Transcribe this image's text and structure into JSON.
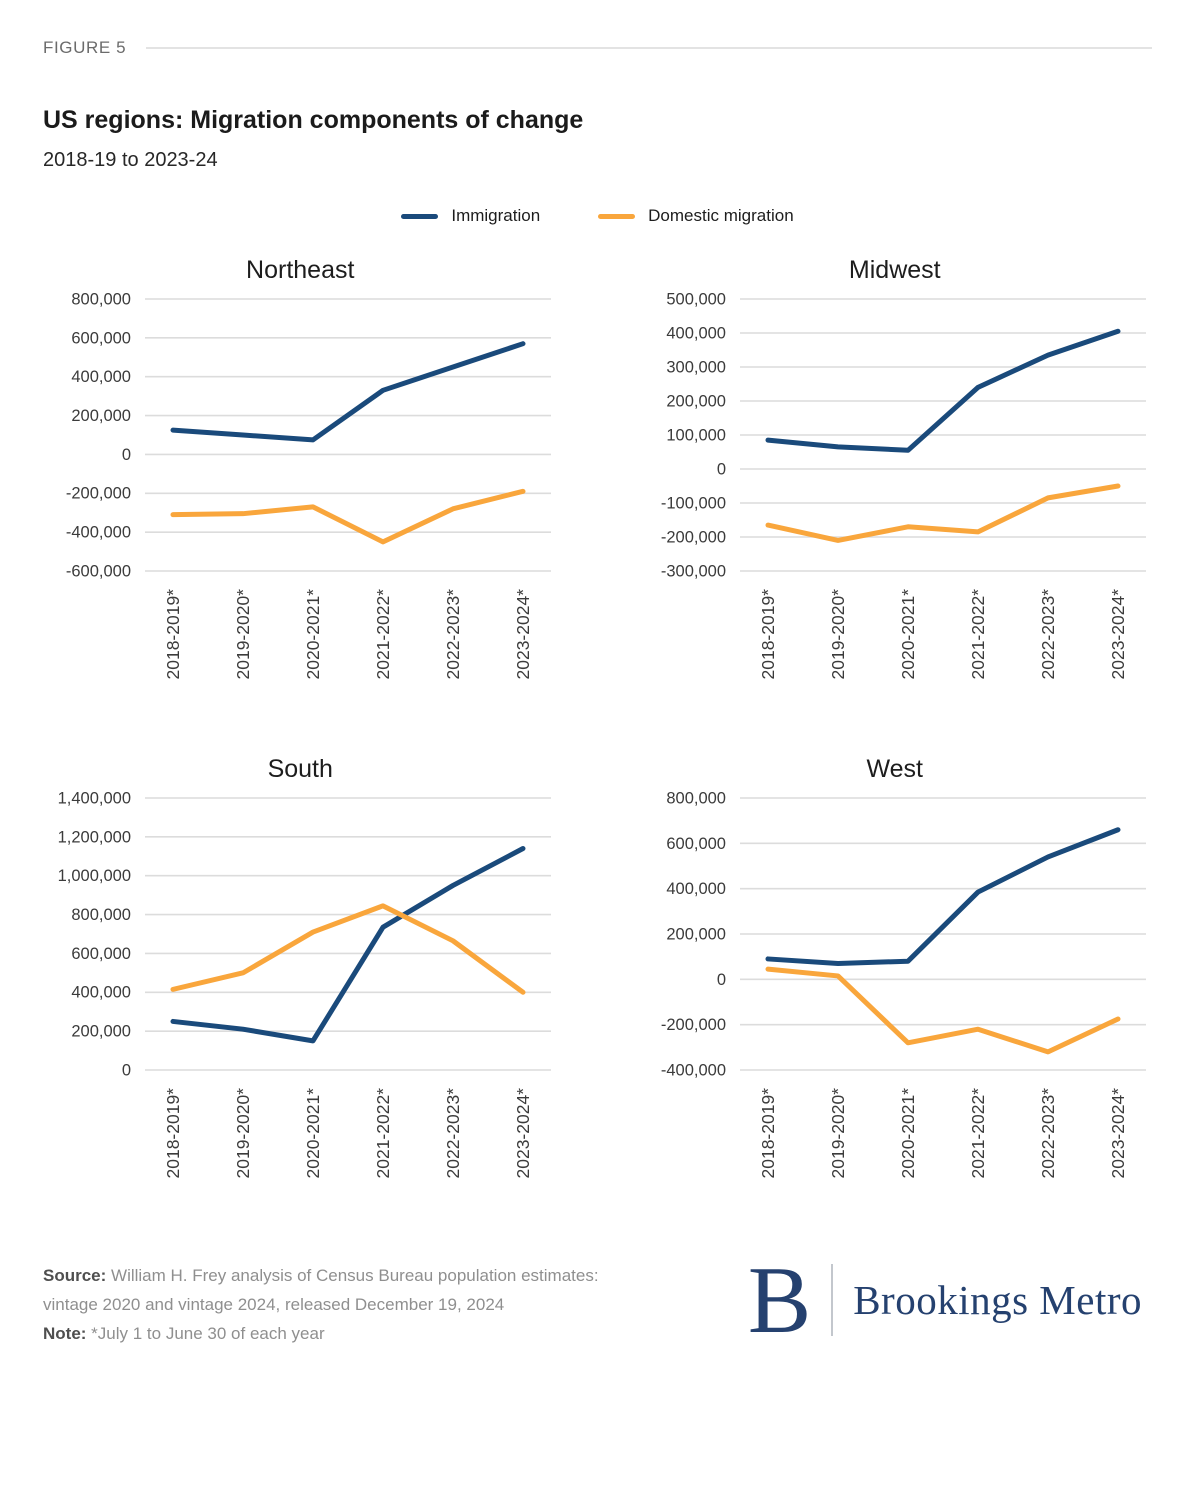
{
  "figure_label": "FIGURE 5",
  "title": "US regions: Migration components of change",
  "subtitle": "2018-19 to 2023-24",
  "legend": [
    {
      "label": "Immigration",
      "color": "#1a4a7b"
    },
    {
      "label": "Domestic migration",
      "color": "#f9a63c"
    }
  ],
  "colors": {
    "immigration_line": "#1a4a7b",
    "domestic_line": "#f9a63c",
    "gridline": "#dcdcdc",
    "axis_text": "#3b3b3b",
    "brand_navy": "#25416f"
  },
  "chart_data": [
    {
      "type": "line",
      "title": "Northeast",
      "x": [
        "2018-2019*",
        "2019-2020*",
        "2020-2021*",
        "2021-2022*",
        "2022-2023*",
        "2023-2024*"
      ],
      "series": [
        {
          "name": "Immigration",
          "color": "#1a4a7b",
          "values": [
            125000,
            100000,
            75000,
            330000,
            450000,
            570000
          ]
        },
        {
          "name": "Domestic migration",
          "color": "#f9a63c",
          "values": [
            -310000,
            -305000,
            -270000,
            -450000,
            -280000,
            -190000
          ]
        }
      ],
      "ylim": [
        -600000,
        800000
      ],
      "ytick_step": 200000,
      "grid": true,
      "legend_position": "top-shared"
    },
    {
      "type": "line",
      "title": "Midwest",
      "x": [
        "2018-2019*",
        "2019-2020*",
        "2020-2021*",
        "2021-2022*",
        "2022-2023*",
        "2023-2024*"
      ],
      "series": [
        {
          "name": "Immigration",
          "color": "#1a4a7b",
          "values": [
            85000,
            65000,
            55000,
            240000,
            335000,
            405000
          ]
        },
        {
          "name": "Domestic migration",
          "color": "#f9a63c",
          "values": [
            -165000,
            -210000,
            -170000,
            -185000,
            -85000,
            -50000
          ]
        }
      ],
      "ylim": [
        -300000,
        500000
      ],
      "ytick_step": 100000,
      "grid": true,
      "legend_position": "top-shared"
    },
    {
      "type": "line",
      "title": "South",
      "x": [
        "2018-2019*",
        "2019-2020*",
        "2020-2021*",
        "2021-2022*",
        "2022-2023*",
        "2023-2024*"
      ],
      "series": [
        {
          "name": "Immigration",
          "color": "#1a4a7b",
          "values": [
            250000,
            210000,
            150000,
            735000,
            950000,
            1140000
          ]
        },
        {
          "name": "Domestic migration",
          "color": "#f9a63c",
          "values": [
            415000,
            500000,
            710000,
            845000,
            665000,
            400000
          ]
        }
      ],
      "ylim": [
        0,
        1400000
      ],
      "ytick_step": 200000,
      "grid": true,
      "legend_position": "top-shared"
    },
    {
      "type": "line",
      "title": "West",
      "x": [
        "2018-2019*",
        "2019-2020*",
        "2020-2021*",
        "2021-2022*",
        "2022-2023*",
        "2023-2024*"
      ],
      "series": [
        {
          "name": "Immigration",
          "color": "#1a4a7b",
          "values": [
            90000,
            70000,
            80000,
            385000,
            540000,
            660000
          ]
        },
        {
          "name": "Domestic migration",
          "color": "#f9a63c",
          "values": [
            45000,
            15000,
            -280000,
            -220000,
            -320000,
            -175000
          ]
        }
      ],
      "ylim": [
        -400000,
        800000
      ],
      "ytick_step": 200000,
      "grid": true,
      "legend_position": "top-shared"
    }
  ],
  "footer": {
    "source_label": "Source:",
    "source_text": " William H. Frey analysis of Census Bureau population estimates: vintage 2020 and vintage 2024, released December 19, 2024",
    "note_label": "Note:",
    "note_text": " *July 1 to June 30 of each year",
    "brand_initial": "B",
    "brand_name": "Brookings Metro"
  }
}
